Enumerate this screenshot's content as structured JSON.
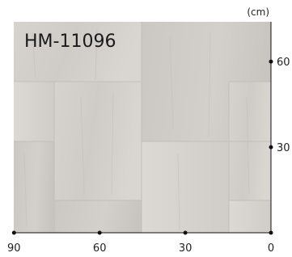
{
  "label": "HM-11096",
  "scale": {
    "unit": "(cm)",
    "x_ticks": [
      90,
      60,
      30,
      0
    ],
    "y_ticks": [
      30,
      60
    ]
  }
}
